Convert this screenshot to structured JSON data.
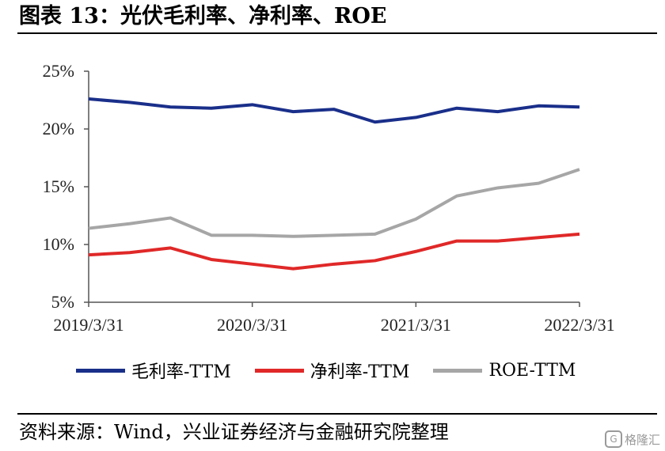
{
  "title": "图表 13：光伏毛利率、净利率、ROE",
  "source": "资料来源：Wind，兴业证券经济与金融研究院整理",
  "watermark": "格隆汇",
  "chart_data": {
    "type": "line",
    "x": [
      "2019/3/31",
      "2019/6/30",
      "2019/9/30",
      "2019/12/31",
      "2020/3/31",
      "2020/6/30",
      "2020/9/30",
      "2020/12/31",
      "2021/3/31",
      "2021/6/30",
      "2021/9/30",
      "2021/12/31",
      "2022/3/31"
    ],
    "x_tick_labels": [
      "2019/3/31",
      "2020/3/31",
      "2021/3/31",
      "2022/3/31"
    ],
    "y_tick_labels": [
      "5%",
      "10%",
      "15%",
      "20%",
      "25%"
    ],
    "ylim": [
      5,
      25
    ],
    "y_unit": "%",
    "grid": false,
    "legend_position": "bottom",
    "series": [
      {
        "name": "毛利率-TTM",
        "color": "#1a2f8a",
        "values": [
          22.6,
          22.3,
          21.9,
          21.8,
          22.1,
          21.5,
          21.7,
          20.6,
          21.0,
          21.8,
          21.5,
          22.0,
          21.9
        ]
      },
      {
        "name": "净利率-TTM",
        "color": "#e02828",
        "values": [
          9.1,
          9.3,
          9.7,
          8.7,
          8.3,
          7.9,
          8.3,
          8.6,
          9.4,
          10.3,
          10.3,
          10.6,
          10.9
        ]
      },
      {
        "name": "ROE-TTM",
        "color": "#a6a6a6",
        "values": [
          11.4,
          11.8,
          12.3,
          10.8,
          10.8,
          10.7,
          10.8,
          10.9,
          12.2,
          14.2,
          14.9,
          15.3,
          16.5
        ]
      }
    ]
  }
}
